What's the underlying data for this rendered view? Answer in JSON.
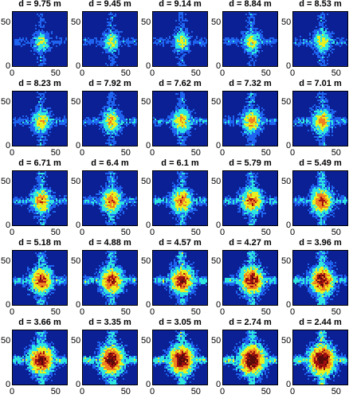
{
  "chart_data": {
    "type": "heatmap",
    "layout": "5x5 small multiples",
    "title_prefix": "d",
    "title_unit": "m",
    "xticks": [
      0,
      50
    ],
    "yticks": [
      0,
      50
    ],
    "xlim": [
      0,
      64
    ],
    "ylim": [
      0,
      64
    ],
    "colormap": "jet",
    "panels": [
      {
        "d": "9.75",
        "label": "d = 9.75 m"
      },
      {
        "d": "9.45",
        "label": "d = 9.45 m"
      },
      {
        "d": "9.14",
        "label": "d = 9.14 m"
      },
      {
        "d": "8.84",
        "label": "d = 8.84 m"
      },
      {
        "d": "8.53",
        "label": "d = 8.53 m"
      },
      {
        "d": "8.23",
        "label": "d = 8.23 m"
      },
      {
        "d": "7.92",
        "label": "d = 7.92 m"
      },
      {
        "d": "7.62",
        "label": "d = 7.62 m"
      },
      {
        "d": "7.32",
        "label": "d = 7.32 m"
      },
      {
        "d": "7.01",
        "label": "d = 7.01 m"
      },
      {
        "d": "6.71",
        "label": "d = 6.71 m"
      },
      {
        "d": "6.4",
        "label": "d = 6.4 m"
      },
      {
        "d": "6.1",
        "label": "d = 6.1 m"
      },
      {
        "d": "5.79",
        "label": "d = 5.79 m"
      },
      {
        "d": "5.49",
        "label": "d = 5.49 m"
      },
      {
        "d": "5.18",
        "label": "d = 5.18 m"
      },
      {
        "d": "4.88",
        "label": "d = 4.88 m"
      },
      {
        "d": "4.57",
        "label": "d = 4.57 m"
      },
      {
        "d": "4.27",
        "label": "d = 4.27 m"
      },
      {
        "d": "3.96",
        "label": "d = 3.96 m"
      },
      {
        "d": "3.66",
        "label": "d = 3.66 m"
      },
      {
        "d": "3.35",
        "label": "d = 3.35 m"
      },
      {
        "d": "3.05",
        "label": "d = 3.05 m"
      },
      {
        "d": "2.74",
        "label": "d = 2.74 m"
      },
      {
        "d": "2.44",
        "label": "d = 2.44 m"
      }
    ],
    "colors": {
      "background": "#0c2096",
      "low": "#1e64f0",
      "mid": "#2ee6e0",
      "midhigh": "#e8f020",
      "high": "#f08020",
      "peak": "#a01010",
      "max": "#5a0a0a"
    }
  }
}
